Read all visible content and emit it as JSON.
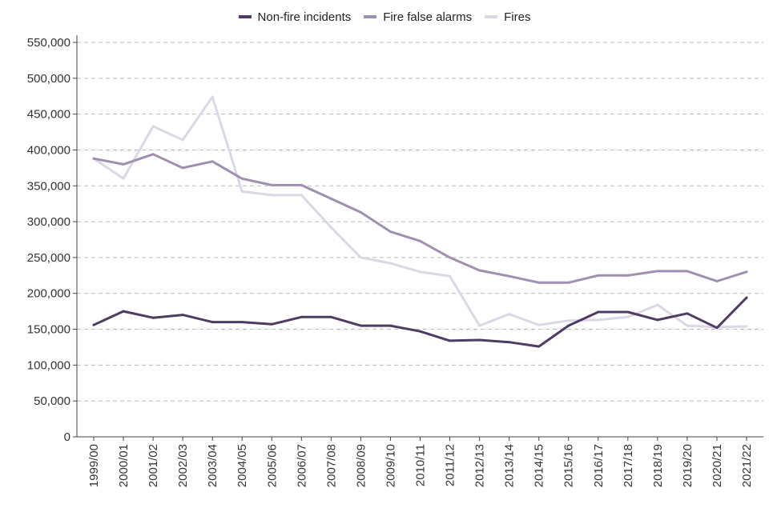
{
  "chart_data": {
    "type": "line",
    "title": "",
    "xlabel": "",
    "ylabel": "",
    "ylim": [
      0,
      550000
    ],
    "yticks": [
      0,
      50000,
      100000,
      150000,
      200000,
      250000,
      300000,
      350000,
      400000,
      450000,
      500000,
      550000
    ],
    "ytick_labels": [
      "0",
      "50,000",
      "100,000",
      "150,000",
      "200,000",
      "250,000",
      "300,000",
      "350,000",
      "400,000",
      "450,000",
      "500,000",
      "550,000"
    ],
    "grid": "horizontal dashed",
    "legend_position": "top-center",
    "categories": [
      "1999/00",
      "2000/01",
      "2001/02",
      "2002/03",
      "2003/04",
      "2004/05",
      "2005/06",
      "2006/07",
      "2007/08",
      "2008/09",
      "2009/10",
      "2010/11",
      "2011/12",
      "2012/13",
      "2013/14",
      "2014/15",
      "2015/16",
      "2016/17",
      "2017/18",
      "2018/19",
      "2019/20",
      "2020/21",
      "2021/22"
    ],
    "series": [
      {
        "name": "Non-fire incidents",
        "color": "#4f3b63",
        "values": [
          156000,
          175000,
          166000,
          170000,
          160000,
          160000,
          157000,
          167000,
          167000,
          155000,
          155000,
          147000,
          134000,
          135000,
          132000,
          126000,
          155000,
          174000,
          174000,
          163000,
          172000,
          152000,
          194000
        ]
      },
      {
        "name": "Fire false alarms",
        "color": "#9f8fb0",
        "values": [
          388000,
          380000,
          394000,
          375000,
          384000,
          360000,
          351000,
          351000,
          332000,
          313000,
          286000,
          273000,
          250000,
          232000,
          224000,
          215000,
          215000,
          225000,
          225000,
          231000,
          231000,
          217000,
          230000
        ]
      },
      {
        "name": "Fires",
        "color": "#ddd6e6",
        "values": [
          388000,
          360000,
          433000,
          414000,
          474000,
          342000,
          337000,
          337000,
          292000,
          250000,
          242000,
          230000,
          224000,
          155000,
          171000,
          156000,
          162000,
          163000,
          167000,
          184000,
          155000,
          153000,
          154000
        ]
      }
    ]
  }
}
